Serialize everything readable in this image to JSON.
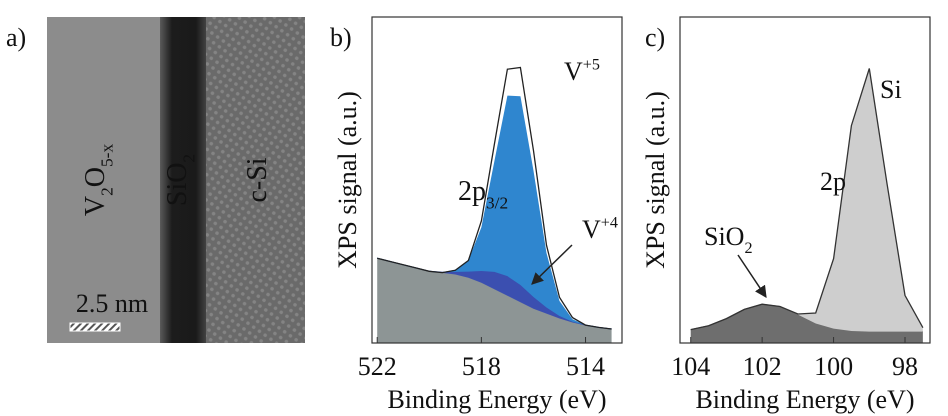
{
  "image_panel": {
    "label": "a)",
    "regions": [
      {
        "parts": [
          {
            "t": "V"
          },
          {
            "t": "2",
            "sub": true
          },
          {
            "t": "O"
          },
          {
            "t": "5-x",
            "sub": true
          }
        ]
      },
      {
        "parts": [
          {
            "t": "SiO"
          },
          {
            "t": "2",
            "sub": true
          }
        ]
      },
      {
        "parts": [
          {
            "t": "c-Si"
          }
        ]
      }
    ],
    "scale_bar": "2.5 nm"
  },
  "chart_data": [
    {
      "type": "area",
      "panel_label": "b)",
      "xlabel": "Binding Energy (eV)",
      "ylabel": "XPS signal (a.u.)",
      "x": [
        522,
        521.5,
        521,
        520.5,
        520,
        519.5,
        519,
        518.5,
        518,
        517.5,
        517,
        516.5,
        516,
        515.5,
        515,
        514.5,
        514,
        513.5,
        513
      ],
      "xlim": [
        522.2,
        512.6
      ],
      "ylim": [
        0,
        1
      ],
      "xticks": [
        522,
        518,
        514
      ],
      "series": [
        {
          "color": "#8d9595",
          "values": [
            0.26,
            0.25,
            0.24,
            0.23,
            0.22,
            0.215,
            0.21,
            0.2,
            0.185,
            0.165,
            0.145,
            0.125,
            0.105,
            0.09,
            0.075,
            0.063,
            0.055,
            0.048,
            0.043
          ]
        },
        {
          "color": "#3b4fb0",
          "values": [
            0.26,
            0.25,
            0.24,
            0.23,
            0.22,
            0.217,
            0.218,
            0.219,
            0.221,
            0.218,
            0.205,
            0.178,
            0.141,
            0.109,
            0.083,
            0.065,
            0.055,
            0.048,
            0.043
          ]
        },
        {
          "color": "#2f86cf",
          "values": [
            0.26,
            0.25,
            0.24,
            0.23,
            0.22,
            0.216,
            0.223,
            0.253,
            0.355,
            0.558,
            0.759,
            0.757,
            0.529,
            0.276,
            0.129,
            0.073,
            0.055,
            0.048,
            0.043
          ]
        },
        {
          "color": "#ffffff",
          "line": "#222222",
          "values": [
            0.26,
            0.25,
            0.24,
            0.23,
            0.22,
            0.216,
            0.223,
            0.253,
            0.375,
            0.61,
            0.84,
            0.845,
            0.59,
            0.3,
            0.14,
            0.078,
            0.055,
            0.048,
            0.043
          ]
        }
      ],
      "annotations": [
        {
          "parts": [
            {
              "t": "V"
            },
            {
              "t": "+5",
              "sup": true
            }
          ]
        },
        {
          "parts": [
            {
              "t": "2p"
            },
            {
              "t": "3/2",
              "sub": true
            }
          ]
        },
        {
          "parts": [
            {
              "t": "V"
            },
            {
              "t": "+4",
              "sup": true
            }
          ]
        }
      ]
    },
    {
      "type": "area",
      "panel_label": "c)",
      "xlabel": "Binding Energy (eV)",
      "ylabel": "XPS signal (a.u.)",
      "x": [
        104,
        103.5,
        103,
        102.5,
        102,
        101.5,
        101,
        100.5,
        100,
        99.5,
        99,
        98.5,
        98,
        97.5
      ],
      "xlim": [
        104.3,
        97.3
      ],
      "ylim": [
        0,
        1
      ],
      "xticks": [
        104,
        102,
        100,
        98
      ],
      "series": [
        {
          "color": "#6e6e6e",
          "values": [
            0.041,
            0.053,
            0.075,
            0.103,
            0.119,
            0.112,
            0.087,
            0.06,
            0.044,
            0.037,
            0.035,
            0.035,
            0.035,
            0.035
          ]
        },
        {
          "color": "#cecece",
          "line": "#333333",
          "values": [
            0.041,
            0.053,
            0.075,
            0.103,
            0.119,
            0.112,
            0.089,
            0.092,
            0.259,
            0.667,
            0.842,
            0.487,
            0.146,
            0.047
          ]
        }
      ],
      "annotations": [
        {
          "parts": [
            {
              "t": "Si"
            }
          ]
        },
        {
          "parts": [
            {
              "t": "2p"
            }
          ]
        },
        {
          "parts": [
            {
              "t": "SiO"
            },
            {
              "t": "2",
              "sub": true
            }
          ]
        }
      ]
    }
  ]
}
